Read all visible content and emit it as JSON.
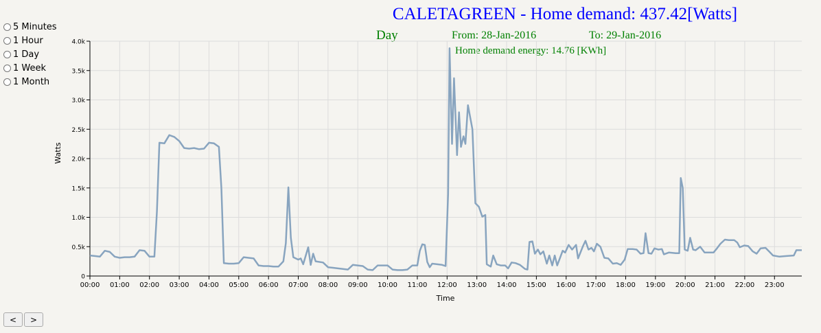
{
  "controls": {
    "ranges": [
      "5 Minutes",
      "1 Hour",
      "1 Day",
      "1 Week",
      "1 Month"
    ],
    "prev": "<",
    "next": ">"
  },
  "chart_data": {
    "type": "line",
    "title": "CALETAGREEN - Home demand: 437.42[Watts]",
    "period": "Day",
    "from": "From: 28-Jan-2016",
    "to": "To: 29-Jan-2016",
    "annotation": "Home demand energy: 14.76 [KWh]",
    "x_label": "Time",
    "y_label": "Watts",
    "color": "#88a4bf",
    "grid": true,
    "x": [
      0,
      10,
      20,
      30,
      40,
      50,
      60,
      70,
      80,
      90,
      100,
      110,
      120,
      130,
      135,
      140,
      150,
      160,
      170,
      180,
      190,
      200,
      210,
      220,
      230,
      240,
      250,
      260,
      265,
      270,
      280,
      290,
      300,
      310,
      320,
      330,
      340,
      350,
      360,
      370,
      380,
      390,
      395,
      400,
      405,
      410,
      420,
      425,
      430,
      440,
      445,
      450,
      455,
      470,
      480,
      490,
      500,
      510,
      520,
      530,
      540,
      550,
      560,
      570,
      580,
      590,
      600,
      610,
      620,
      630,
      640,
      650,
      660,
      665,
      670,
      675,
      680,
      685,
      690,
      700,
      710,
      717,
      722,
      725,
      730,
      734,
      740,
      744,
      748,
      753,
      757,
      762,
      771,
      777,
      784,
      791,
      797,
      800,
      808,
      813,
      820,
      828,
      837,
      843,
      850,
      858,
      867,
      877,
      882,
      886,
      892,
      897,
      903,
      908,
      914,
      921,
      926,
      932,
      937,
      942,
      953,
      958,
      965,
      972,
      980,
      984,
      994,
      999,
      1005,
      1011,
      1016,
      1022,
      1029,
      1037,
      1045,
      1054,
      1062,
      1070,
      1078,
      1084,
      1094,
      1102,
      1110,
      1116,
      1120,
      1126,
      1132,
      1138,
      1146,
      1153,
      1157,
      1167,
      1181,
      1188,
      1191,
      1195,
      1199,
      1205,
      1210,
      1216,
      1221,
      1230,
      1239,
      1257,
      1264,
      1271,
      1280,
      1288,
      1299,
      1305,
      1310,
      1319,
      1327,
      1336,
      1344,
      1352,
      1362,
      1369,
      1377,
      1390,
      1404,
      1419,
      1424,
      1435
    ],
    "values": [
      350,
      340,
      330,
      430,
      410,
      330,
      310,
      320,
      320,
      330,
      440,
      430,
      330,
      330,
      1100,
      2270,
      2260,
      2400,
      2370,
      2300,
      2180,
      2170,
      2180,
      2160,
      2170,
      2270,
      2260,
      2200,
      1500,
      220,
      210,
      210,
      220,
      320,
      310,
      300,
      180,
      170,
      170,
      160,
      160,
      250,
      560,
      1510,
      650,
      320,
      280,
      300,
      200,
      490,
      190,
      380,
      250,
      230,
      150,
      140,
      130,
      120,
      110,
      190,
      180,
      170,
      110,
      100,
      180,
      180,
      180,
      110,
      100,
      100,
      110,
      180,
      180,
      430,
      540,
      530,
      240,
      150,
      210,
      200,
      190,
      170,
      1400,
      3880,
      2250,
      3370,
      2060,
      2790,
      2200,
      2380,
      2250,
      2910,
      2500,
      1240,
      1180,
      1010,
      1040,
      200,
      160,
      350,
      200,
      180,
      180,
      130,
      230,
      220,
      190,
      120,
      110,
      580,
      590,
      380,
      450,
      370,
      420,
      210,
      350,
      180,
      350,
      180,
      430,
      400,
      530,
      450,
      530,
      300,
      510,
      600,
      450,
      480,
      420,
      550,
      500,
      310,
      300,
      210,
      220,
      190,
      280,
      460,
      460,
      450,
      380,
      390,
      730,
      390,
      380,
      470,
      450,
      460,
      370,
      400,
      390,
      390,
      1670,
      1500,
      450,
      430,
      650,
      450,
      440,
      500,
      400,
      400,
      470,
      550,
      620,
      610,
      610,
      570,
      490,
      520,
      510,
      420,
      380,
      470,
      480,
      420,
      350,
      330,
      340,
      350,
      440,
      440
    ],
    "xlim": [
      0,
      1435
    ],
    "xticks": [
      {
        "value": 0,
        "label": "00:00"
      },
      {
        "value": 60,
        "label": "01:00"
      },
      {
        "value": 120,
        "label": "02:00"
      },
      {
        "value": 180,
        "label": "03:00"
      },
      {
        "value": 240,
        "label": "04:00"
      },
      {
        "value": 300,
        "label": "05:00"
      },
      {
        "value": 360,
        "label": "06:00"
      },
      {
        "value": 420,
        "label": "07:00"
      },
      {
        "value": 480,
        "label": "08:00"
      },
      {
        "value": 540,
        "label": "09:00"
      },
      {
        "value": 600,
        "label": "10:00"
      },
      {
        "value": 660,
        "label": "11:00"
      },
      {
        "value": 720,
        "label": "12:00"
      },
      {
        "value": 780,
        "label": "13:00"
      },
      {
        "value": 840,
        "label": "14:00"
      },
      {
        "value": 900,
        "label": "15:00"
      },
      {
        "value": 960,
        "label": "16:00"
      },
      {
        "value": 1020,
        "label": "17:00"
      },
      {
        "value": 1080,
        "label": "18:00"
      },
      {
        "value": 1140,
        "label": "19:00"
      },
      {
        "value": 1200,
        "label": "20:00"
      },
      {
        "value": 1260,
        "label": "21:00"
      },
      {
        "value": 1320,
        "label": "22:00"
      },
      {
        "value": 1380,
        "label": "23:00"
      }
    ],
    "ylim": [
      0,
      4000
    ],
    "yticks": [
      0,
      {
        "value": 500,
        "label": "0.5k"
      },
      {
        "value": 1000,
        "label": "1.0k"
      },
      {
        "value": 1500,
        "label": "1.5k"
      },
      {
        "value": 2000,
        "label": "2.0k"
      },
      {
        "value": 2500,
        "label": "2.5k"
      },
      {
        "value": 3000,
        "label": "3.0k"
      },
      {
        "value": 3500,
        "label": "3.5k"
      },
      {
        "value": 4000,
        "label": "4.0k"
      }
    ]
  }
}
